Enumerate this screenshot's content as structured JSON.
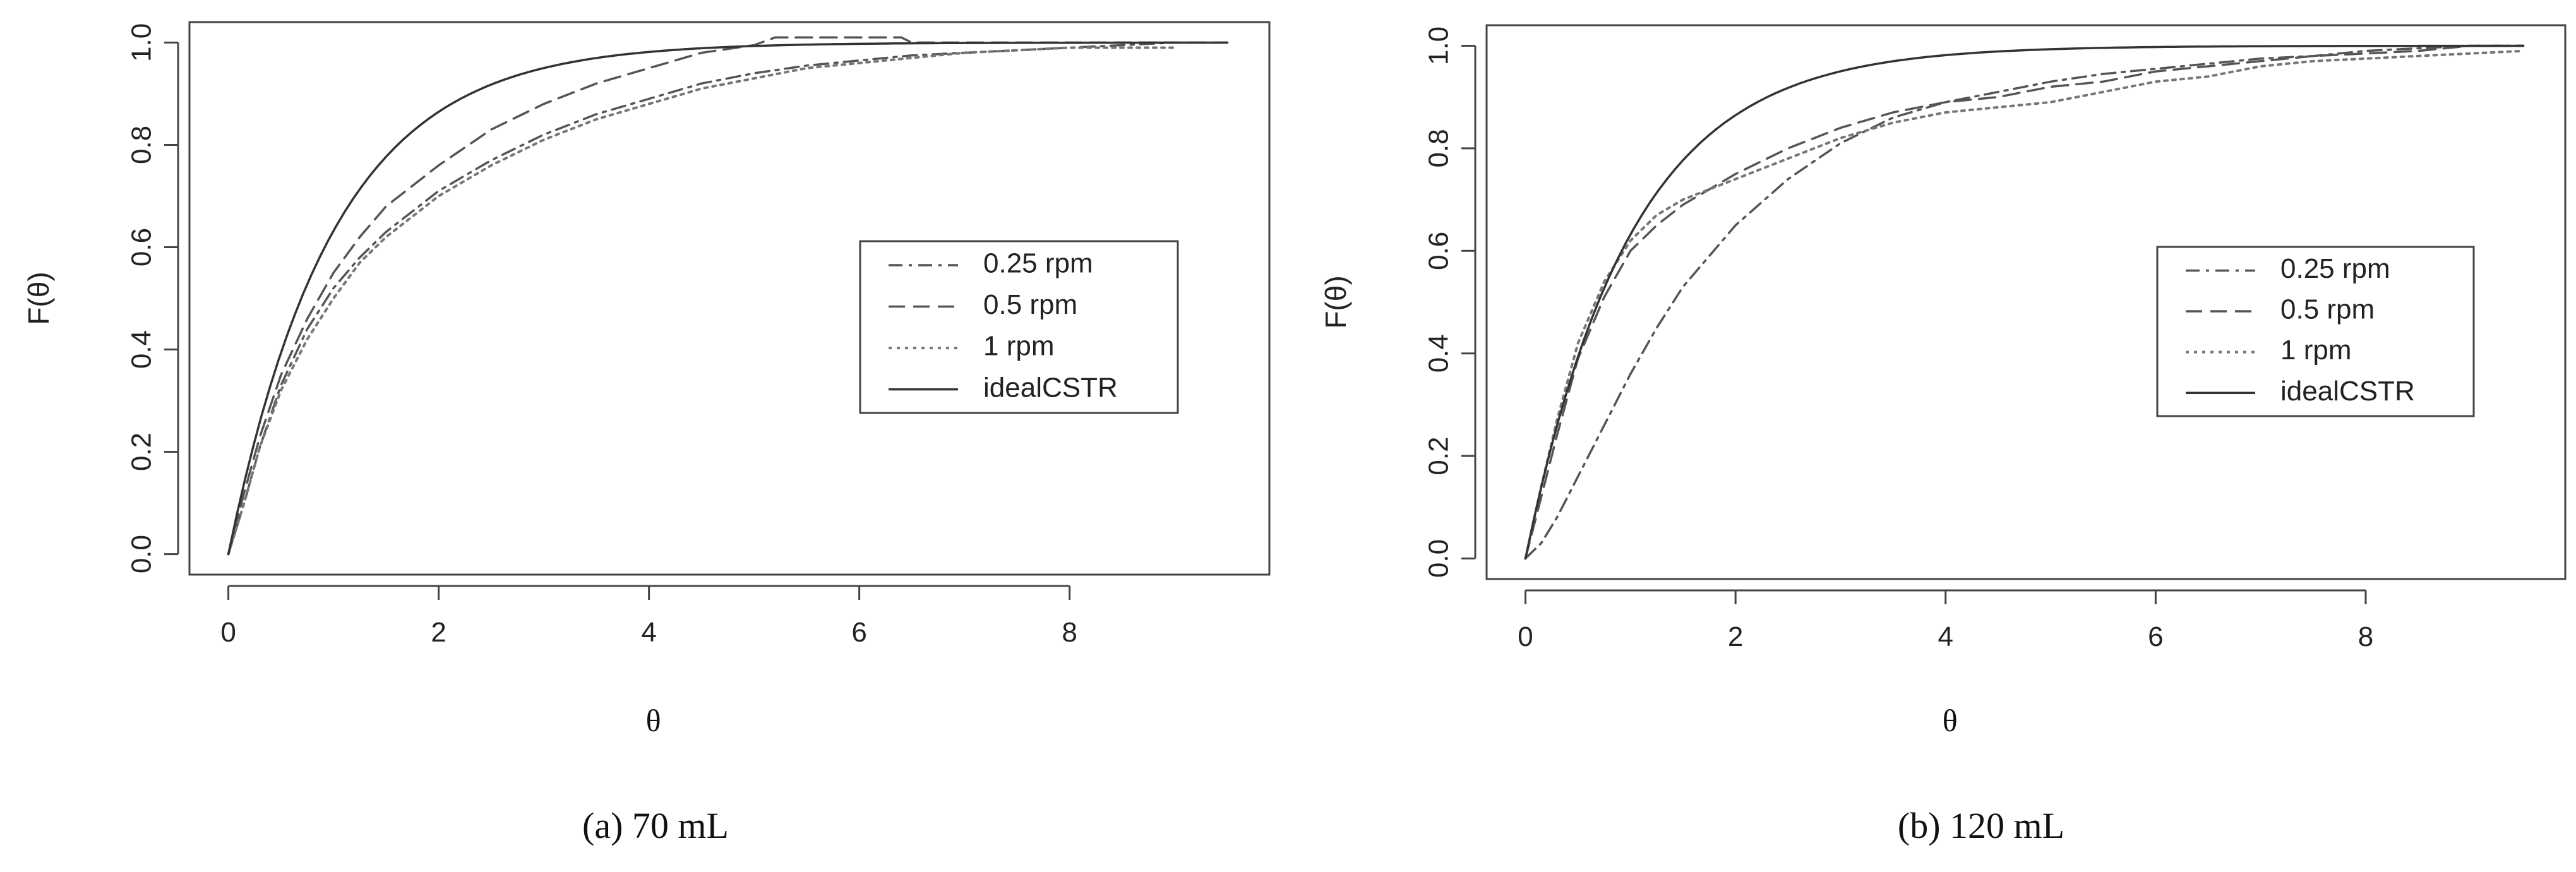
{
  "chart_data": [
    {
      "type": "line",
      "caption": "(a)  70 mL",
      "xlabel": "θ",
      "ylabel": "F(θ)",
      "xlim": [
        -0.37,
        9.9
      ],
      "ylim": [
        -0.04,
        1.04
      ],
      "xticks": [
        "0",
        "2",
        "4",
        "6",
        "8"
      ],
      "yticks": [
        "0.0",
        "0.2",
        "0.4",
        "0.6",
        "0.8",
        "1.0"
      ],
      "legend_position": "center-right",
      "series": [
        {
          "name": "0.25 rpm",
          "style": "dashdot",
          "color": "#555555",
          "x": [
            0,
            0.15,
            0.3,
            0.5,
            0.75,
            1.0,
            1.25,
            1.5,
            2.0,
            2.5,
            3.0,
            3.5,
            4.0,
            4.5,
            5.0,
            5.5,
            6.0,
            6.5,
            7.0,
            7.5,
            8.0,
            8.5,
            9.0
          ],
          "y": [
            0,
            0.1,
            0.21,
            0.33,
            0.44,
            0.52,
            0.58,
            0.63,
            0.71,
            0.77,
            0.82,
            0.86,
            0.89,
            0.92,
            0.94,
            0.955,
            0.965,
            0.975,
            0.98,
            0.985,
            0.99,
            0.995,
            1.0
          ]
        },
        {
          "name": "0.5 rpm",
          "style": "dashed",
          "color": "#555555",
          "x": [
            0,
            0.15,
            0.3,
            0.5,
            0.75,
            1.0,
            1.25,
            1.5,
            2.0,
            2.5,
            3.0,
            3.5,
            4.0,
            4.5,
            5.0,
            5.2,
            5.6,
            6.0,
            6.4,
            6.5,
            7.0,
            8.0,
            9.0,
            9.5
          ],
          "y": [
            0,
            0.12,
            0.23,
            0.35,
            0.46,
            0.55,
            0.62,
            0.68,
            0.76,
            0.83,
            0.88,
            0.92,
            0.95,
            0.98,
            0.995,
            1.01,
            1.01,
            1.01,
            1.01,
            1.0,
            1.0,
            1.0,
            1.0,
            1.0
          ]
        },
        {
          "name": "1 rpm",
          "style": "dotted",
          "color": "#777777",
          "x": [
            0,
            0.15,
            0.3,
            0.5,
            0.75,
            1.0,
            1.25,
            1.5,
            2.0,
            2.5,
            3.0,
            3.5,
            4.0,
            4.5,
            5.0,
            5.5,
            6.0,
            6.5,
            7.0,
            7.5,
            8.0,
            8.5,
            9.0
          ],
          "y": [
            0,
            0.1,
            0.21,
            0.32,
            0.42,
            0.5,
            0.57,
            0.62,
            0.7,
            0.76,
            0.81,
            0.85,
            0.88,
            0.91,
            0.93,
            0.95,
            0.96,
            0.97,
            0.98,
            0.985,
            0.99,
            0.99,
            0.99
          ]
        },
        {
          "name": "idealCSTR",
          "style": "solid",
          "color": "#333333",
          "function": "1-exp(-x)",
          "x_range": [
            0,
            9.5
          ]
        }
      ]
    },
    {
      "type": "line",
      "caption": "(b)  120 mL",
      "xlabel": "θ",
      "ylabel": "F(θ)",
      "xlim": [
        -0.37,
        9.9
      ],
      "ylim": [
        -0.04,
        1.04
      ],
      "xticks": [
        "0",
        "2",
        "4",
        "6",
        "8"
      ],
      "yticks": [
        "0.0",
        "0.2",
        "0.4",
        "0.6",
        "0.8",
        "1.0"
      ],
      "legend_position": "center-right",
      "series": [
        {
          "name": "0.25 rpm",
          "style": "dashdot",
          "color": "#555555",
          "x": [
            0,
            0.15,
            0.3,
            0.5,
            0.75,
            1.0,
            1.25,
            1.5,
            2.0,
            2.5,
            3.0,
            3.5,
            4.0,
            4.5,
            5.0,
            5.5,
            6.0,
            6.5,
            7.0,
            7.5,
            8.0,
            8.5,
            9.0,
            9.5
          ],
          "y": [
            0,
            0.03,
            0.08,
            0.16,
            0.26,
            0.36,
            0.45,
            0.53,
            0.65,
            0.74,
            0.81,
            0.86,
            0.89,
            0.91,
            0.93,
            0.945,
            0.955,
            0.965,
            0.975,
            0.98,
            0.99,
            0.995,
            1.0,
            1.0
          ]
        },
        {
          "name": "0.5 rpm",
          "style": "dashed",
          "color": "#555555",
          "x": [
            0,
            0.15,
            0.3,
            0.5,
            0.75,
            1.0,
            1.25,
            1.5,
            2.0,
            2.5,
            3.0,
            3.5,
            4.0,
            4.5,
            5.0,
            5.5,
            6.0,
            6.5,
            7.0,
            7.5,
            8.0,
            8.5,
            9.0,
            9.5
          ],
          "y": [
            0,
            0.12,
            0.24,
            0.39,
            0.51,
            0.6,
            0.65,
            0.69,
            0.75,
            0.8,
            0.84,
            0.87,
            0.89,
            0.9,
            0.92,
            0.93,
            0.95,
            0.96,
            0.97,
            0.98,
            0.985,
            0.99,
            1.0,
            1.0
          ]
        },
        {
          "name": "1 rpm",
          "style": "dotted",
          "color": "#777777",
          "x": [
            0,
            0.15,
            0.3,
            0.5,
            0.75,
            1.0,
            1.25,
            1.5,
            2.0,
            2.5,
            3.0,
            3.5,
            4.0,
            4.5,
            5.0,
            5.5,
            6.0,
            6.5,
            7.0,
            7.5,
            8.0,
            8.5,
            9.0,
            9.5
          ],
          "y": [
            0,
            0.14,
            0.27,
            0.42,
            0.54,
            0.62,
            0.67,
            0.7,
            0.74,
            0.78,
            0.82,
            0.85,
            0.87,
            0.88,
            0.89,
            0.91,
            0.93,
            0.94,
            0.96,
            0.97,
            0.975,
            0.98,
            0.985,
            0.99
          ]
        },
        {
          "name": "idealCSTR",
          "style": "solid",
          "color": "#333333",
          "function": "1-exp(-x)",
          "x_range": [
            0,
            9.5
          ]
        }
      ]
    }
  ]
}
